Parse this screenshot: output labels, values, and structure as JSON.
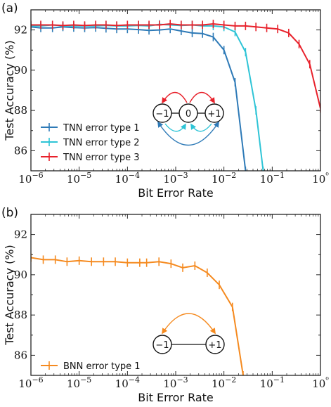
{
  "chart_data": [
    {
      "type": "line",
      "panel_label": "(a)",
      "xlabel": "Bit Error Rate",
      "ylabel": "Test Accuracy (%)",
      "xscale": "log",
      "xlim": [
        1e-06,
        1
      ],
      "ylim": [
        85,
        93
      ],
      "xtick_labels": [
        "10−6",
        "10−5",
        "10−4",
        "10−3",
        "10−2",
        "10−1",
        "10⁰"
      ],
      "ytick_labels": [
        "86",
        "88",
        "90",
        "92"
      ],
      "legend_position": "lower-left",
      "series": [
        {
          "name": "TNN error type 1",
          "color": "#2e7ab7",
          "x": [
            1e-06,
            1.6e-06,
            2.8e-06,
            4.6e-06,
            7.7e-06,
            1.3e-05,
            2.2e-05,
            3.6e-05,
            6e-05,
            0.0001,
            0.00017,
            0.00028,
            0.00046,
            0.00077,
            0.0013,
            0.0022,
            0.0036,
            0.006,
            0.01,
            0.017,
            0.028
          ],
          "y": [
            92.15,
            92.1,
            92.1,
            92.15,
            92.12,
            92.1,
            92.12,
            92.08,
            92.05,
            92.05,
            92.02,
            91.98,
            92.0,
            92.05,
            91.95,
            91.85,
            91.82,
            91.65,
            91.0,
            89.4,
            85.0
          ]
        },
        {
          "name": "TNN error type 2",
          "color": "#2ec4d6",
          "x": [
            1e-06,
            1.6e-06,
            2.8e-06,
            4.6e-06,
            7.7e-06,
            1.3e-05,
            2.2e-05,
            3.6e-05,
            6e-05,
            0.0001,
            0.00017,
            0.00028,
            0.00046,
            0.00077,
            0.0013,
            0.0022,
            0.0036,
            0.006,
            0.01,
            0.017,
            0.028,
            0.046,
            0.065
          ],
          "y": [
            92.2,
            92.2,
            92.25,
            92.2,
            92.2,
            92.2,
            92.2,
            92.22,
            92.2,
            92.2,
            92.22,
            92.2,
            92.28,
            92.25,
            92.22,
            92.25,
            92.2,
            92.2,
            92.15,
            91.9,
            90.9,
            88.0,
            85.0
          ]
        },
        {
          "name": "TNN error type 3",
          "color": "#e8212b",
          "x": [
            1e-06,
            1.6e-06,
            2.8e-06,
            4.6e-06,
            7.7e-06,
            1.3e-05,
            2.2e-05,
            3.6e-05,
            6e-05,
            0.0001,
            0.00017,
            0.00028,
            0.00046,
            0.00077,
            0.0013,
            0.0022,
            0.0036,
            0.006,
            0.01,
            0.017,
            0.028,
            0.046,
            0.077,
            0.13,
            0.22,
            0.36,
            0.6,
            1
          ],
          "y": [
            92.25,
            92.25,
            92.25,
            92.22,
            92.25,
            92.22,
            92.25,
            92.25,
            92.22,
            92.25,
            92.25,
            92.25,
            92.25,
            92.3,
            92.25,
            92.25,
            92.25,
            92.3,
            92.25,
            92.2,
            92.2,
            92.15,
            92.1,
            92.05,
            91.85,
            91.3,
            90.3,
            88.1
          ]
        }
      ],
      "inset": {
        "nodes": [
          "−1",
          "0",
          "+1"
        ]
      }
    },
    {
      "type": "line",
      "panel_label": "(b)",
      "xlabel": "Bit Error Rate",
      "ylabel": "Test Accuracy (%)",
      "xscale": "log",
      "xlim": [
        1e-06,
        1
      ],
      "ylim": [
        85,
        93
      ],
      "xtick_labels": [
        "10−6",
        "10−5",
        "10−4",
        "10−3",
        "10−2",
        "10−1",
        "10⁰"
      ],
      "ytick_labels": [
        "86",
        "88",
        "90",
        "92"
      ],
      "legend_position": "lower-left",
      "series": [
        {
          "name": "BNN error type 1",
          "color": "#f58a1f",
          "x": [
            1e-06,
            1.8e-06,
            3.2e-06,
            5.6e-06,
            1e-05,
            1.8e-05,
            3.2e-05,
            5.6e-05,
            0.0001,
            0.00018,
            0.00025,
            0.00045,
            0.0008,
            0.0014,
            0.0025,
            0.0045,
            0.008,
            0.015,
            0.025
          ],
          "y": [
            90.85,
            90.75,
            90.75,
            90.65,
            90.7,
            90.65,
            90.65,
            90.65,
            90.6,
            90.6,
            90.6,
            90.65,
            90.55,
            90.35,
            90.45,
            90.1,
            89.5,
            88.4,
            85.0
          ]
        }
      ],
      "inset": {
        "nodes": [
          "−1",
          "+1"
        ]
      }
    }
  ]
}
